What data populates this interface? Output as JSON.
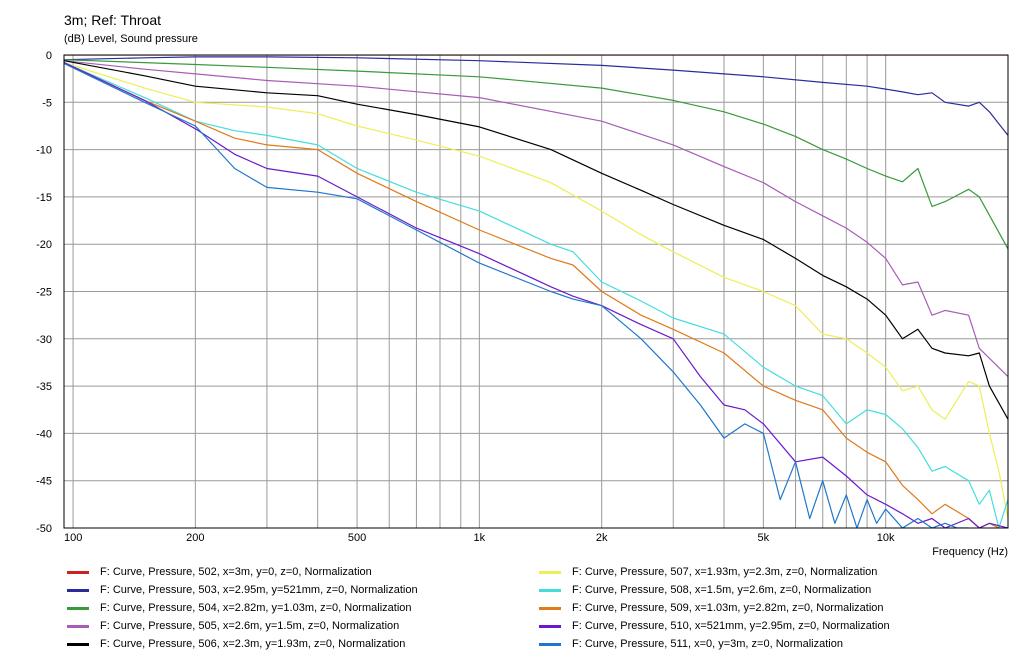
{
  "chart_data": {
    "type": "line",
    "title": "3m; Ref: Throat",
    "ylabel": "(dB)  Level, Sound pressure",
    "xlabel": "Frequency  (Hz)",
    "x_scale": "log",
    "xlim": [
      95,
      20000
    ],
    "ylim": [
      -50,
      0
    ],
    "grid": true,
    "legend_position": "bottom",
    "x_ticks": [
      {
        "value": 100,
        "label": "100"
      },
      {
        "value": 200,
        "label": "200"
      },
      {
        "value": 500,
        "label": "500"
      },
      {
        "value": 1000,
        "label": "1k"
      },
      {
        "value": 2000,
        "label": "2k"
      },
      {
        "value": 5000,
        "label": "5k"
      },
      {
        "value": 10000,
        "label": "10k"
      }
    ],
    "y_ticks": [
      0,
      -5,
      -10,
      -15,
      -20,
      -25,
      -30,
      -35,
      -40,
      -45,
      -50
    ],
    "series": [
      {
        "name": "F: Curve, Pressure, 502, x=3m, y=0, z=0, Normalization",
        "color": "#cc2222",
        "x": [
          95,
          20000
        ],
        "y": [
          0,
          0
        ]
      },
      {
        "name": "F: Curve, Pressure, 503, x=2.95m, y=521mm, z=0, Normalization",
        "color": "#2b2b9e",
        "x": [
          95,
          150,
          200,
          300,
          500,
          1000,
          2000,
          3000,
          5000,
          7000,
          9000,
          10000,
          11000,
          12000,
          13000,
          14000,
          16000,
          17000,
          18000,
          20000
        ],
        "y": [
          -0.5,
          -0.3,
          -0.2,
          -0.2,
          -0.3,
          -0.6,
          -1.1,
          -1.6,
          -2.3,
          -2.9,
          -3.3,
          -3.6,
          -3.9,
          -4.2,
          -4.0,
          -5.0,
          -5.4,
          -5.0,
          -6.0,
          -8.5
        ]
      },
      {
        "name": "F: Curve, Pressure, 504, x=2.82m, y=1.03m, z=0, Normalization",
        "color": "#3a9a3a",
        "x": [
          95,
          150,
          200,
          300,
          500,
          1000,
          2000,
          3000,
          4000,
          5000,
          6000,
          7000,
          8000,
          9000,
          10000,
          11000,
          12000,
          13000,
          14000,
          16000,
          17000,
          20000
        ],
        "y": [
          -0.5,
          -0.8,
          -1.0,
          -1.3,
          -1.7,
          -2.3,
          -3.5,
          -4.8,
          -6.0,
          -7.3,
          -8.6,
          -10.0,
          -11.0,
          -12.0,
          -12.8,
          -13.4,
          -12.0,
          -16.0,
          -15.5,
          -14.2,
          -15.0,
          -20.5
        ]
      },
      {
        "name": "F: Curve, Pressure, 505, x=2.6m, y=1.5m, z=0, Normalization",
        "color": "#a85cb8",
        "x": [
          95,
          150,
          200,
          300,
          500,
          1000,
          2000,
          3000,
          4000,
          5000,
          6000,
          7000,
          8000,
          9000,
          10000,
          11000,
          12000,
          13000,
          14000,
          16000,
          17000,
          20000
        ],
        "y": [
          -0.6,
          -1.5,
          -2.0,
          -2.7,
          -3.3,
          -4.5,
          -7.0,
          -9.5,
          -11.8,
          -13.5,
          -15.5,
          -17.0,
          -18.3,
          -19.8,
          -21.5,
          -24.3,
          -24.0,
          -27.5,
          -27.0,
          -27.5,
          -31.0,
          -34.0
        ]
      },
      {
        "name": "F: Curve, Pressure, 506, x=2.3m, y=1.93m, z=0, Normalization",
        "color": "#000000",
        "x": [
          95,
          150,
          200,
          300,
          400,
          500,
          700,
          1000,
          1500,
          2000,
          2500,
          3000,
          4000,
          5000,
          6000,
          7000,
          8000,
          9000,
          10000,
          11000,
          12000,
          13000,
          14000,
          16000,
          17000,
          18000,
          20000
        ],
        "y": [
          -0.6,
          -2.2,
          -3.3,
          -4.0,
          -4.3,
          -5.2,
          -6.3,
          -7.6,
          -10.0,
          -12.5,
          -14.3,
          -15.8,
          -18.0,
          -19.5,
          -21.5,
          -23.3,
          -24.5,
          -25.8,
          -27.5,
          -30.0,
          -29.0,
          -31.0,
          -31.5,
          -31.8,
          -31.5,
          -35.0,
          -38.5
        ]
      },
      {
        "name": "F: Curve, Pressure, 507, x=1.93m, y=2.3m, z=0, Normalization",
        "color": "#eeee55",
        "x": [
          95,
          150,
          200,
          300,
          400,
          500,
          700,
          1000,
          1500,
          2000,
          2500,
          3000,
          4000,
          5000,
          6000,
          7000,
          8000,
          9000,
          10000,
          11000,
          12000,
          13000,
          14000,
          16000,
          17000,
          18000,
          19000,
          20000
        ],
        "y": [
          -0.8,
          -3.5,
          -5.0,
          -5.5,
          -6.2,
          -7.5,
          -9.0,
          -10.7,
          -13.5,
          -16.5,
          -19.0,
          -20.8,
          -23.5,
          -25.0,
          -26.5,
          -29.5,
          -30.0,
          -31.5,
          -33.0,
          -35.5,
          -35.0,
          -37.5,
          -38.5,
          -34.5,
          -35.0,
          -40.0,
          -44.0,
          -49.0
        ]
      },
      {
        "name": "F: Curve, Pressure, 508, x=1.5m, y=2.6m, z=0, Normalization",
        "color": "#44dddd",
        "x": [
          95,
          150,
          200,
          250,
          300,
          400,
          500,
          700,
          1000,
          1500,
          1700,
          2000,
          2500,
          3000,
          4000,
          5000,
          6000,
          7000,
          8000,
          9000,
          10000,
          11000,
          12000,
          13000,
          14000,
          16000,
          17000,
          18000,
          19000,
          20000
        ],
        "y": [
          -0.8,
          -4.5,
          -7.0,
          -8.0,
          -8.5,
          -9.5,
          -12.0,
          -14.5,
          -16.5,
          -20.0,
          -20.8,
          -24.0,
          -26.0,
          -27.8,
          -29.5,
          -33.0,
          -35.0,
          -36.0,
          -39.0,
          -37.5,
          -38.0,
          -39.5,
          -41.5,
          -44.0,
          -43.5,
          -45.0,
          -47.5,
          -46.0,
          -50.0,
          -47.0
        ]
      },
      {
        "name": "F: Curve, Pressure, 509, x=1.03m, y=2.82m, z=0, Normalization",
        "color": "#e07a1a",
        "x": [
          95,
          150,
          200,
          250,
          300,
          400,
          500,
          700,
          1000,
          1500,
          1700,
          2000,
          2500,
          3000,
          4000,
          5000,
          6000,
          7000,
          8000,
          9000,
          10000,
          11000,
          12000,
          13000,
          14000,
          16000,
          17000,
          18000,
          19000,
          20000
        ],
        "y": [
          -0.8,
          -4.8,
          -7.0,
          -8.8,
          -9.5,
          -10.0,
          -12.5,
          -15.5,
          -18.5,
          -21.5,
          -22.2,
          -25.0,
          -27.5,
          -29.0,
          -31.5,
          -35.0,
          -36.5,
          -37.5,
          -40.5,
          -42.0,
          -43.0,
          -45.5,
          -47.0,
          -48.5,
          -47.5,
          -49.0,
          -50.0,
          -49.5,
          -50.0,
          -50.0
        ]
      },
      {
        "name": "F: Curve, Pressure, 510, x=521mm, y=2.95m, z=0, Normalization",
        "color": "#6a1acc",
        "x": [
          95,
          150,
          200,
          250,
          300,
          400,
          500,
          700,
          1000,
          1500,
          1700,
          2000,
          2500,
          3000,
          3500,
          4000,
          4500,
          5000,
          6000,
          7000,
          8000,
          9000,
          10000,
          11000,
          12000,
          13000,
          14000,
          16000,
          17000,
          18000,
          20000
        ],
        "y": [
          -0.8,
          -4.8,
          -7.8,
          -10.5,
          -12.0,
          -12.8,
          -15.0,
          -18.3,
          -21.0,
          -24.5,
          -25.5,
          -26.5,
          -28.5,
          -30.0,
          -34.0,
          -37.0,
          -37.5,
          -39.0,
          -43.0,
          -42.5,
          -44.5,
          -46.5,
          -47.5,
          -48.5,
          -49.5,
          -49.0,
          -50.0,
          -49.0,
          -50.0,
          -49.5,
          -50.0
        ]
      },
      {
        "name": "F: Curve, Pressure, 511, x=0, y=3m, z=0, Normalization",
        "color": "#1f77cc",
        "x": [
          95,
          150,
          200,
          250,
          300,
          400,
          500,
          700,
          1000,
          1500,
          1700,
          2000,
          2500,
          3000,
          3500,
          4000,
          4500,
          5000,
          5500,
          6000,
          6500,
          7000,
          7500,
          8000,
          8500,
          9000,
          9500,
          10000,
          11000,
          12000,
          13000,
          14000,
          15000,
          16000
        ],
        "y": [
          -0.9,
          -5.0,
          -7.5,
          -12.0,
          -14.0,
          -14.5,
          -15.2,
          -18.5,
          -22.0,
          -25.0,
          -25.8,
          -26.5,
          -30.0,
          -33.5,
          -37.0,
          -40.5,
          -39.0,
          -40.0,
          -47.0,
          -43.0,
          -49.0,
          -45.0,
          -49.5,
          -46.5,
          -50.0,
          -47.0,
          -49.5,
          -48.0,
          -50.0,
          -49.0,
          -50.0,
          -49.5,
          -50.0,
          -50.0
        ]
      }
    ]
  }
}
